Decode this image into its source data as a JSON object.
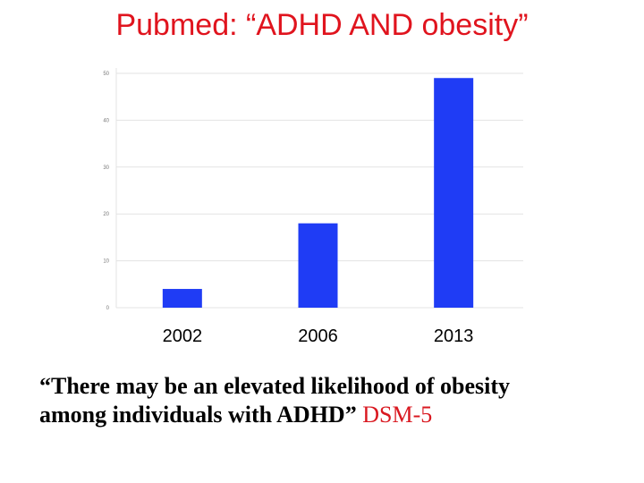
{
  "slide": {
    "title": "Pubmed: “ADHD AND obesity”",
    "quote_line1": "“There may be an elevated likelihood of obesity",
    "quote_line2": "among individuals with ADHD”",
    "quote_source": "DSM-5",
    "title_color": "#e0141e",
    "source_color": "#d91820"
  },
  "chart_data": {
    "type": "bar",
    "categories": [
      "2002",
      "2006",
      "2013"
    ],
    "values": [
      4,
      18,
      49
    ],
    "title": "",
    "xlabel": "",
    "ylabel": "",
    "ylim": [
      0,
      50
    ],
    "yticks": [
      0,
      10,
      20,
      30,
      40,
      50
    ],
    "grid": true,
    "bar_color": "#1f3cf5"
  }
}
